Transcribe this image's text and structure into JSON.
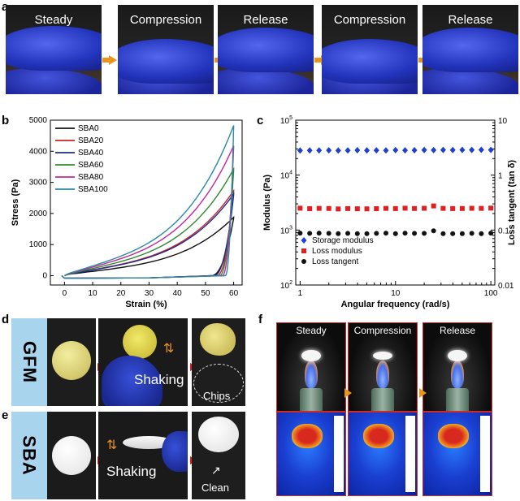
{
  "panel_a": {
    "label": "a",
    "frames": [
      {
        "label": "Steady",
        "sponge_height": 30
      },
      {
        "label": "Compression",
        "sponge_height": 14
      },
      {
        "label": "Release",
        "sponge_height": 28
      },
      {
        "label": "Compression",
        "sponge_height": 14
      },
      {
        "label": "Release",
        "sponge_height": 28
      }
    ],
    "arrow_color": "#e8951e"
  },
  "panel_b": {
    "label": "b"
  },
  "panel_c": {
    "label": "c"
  },
  "panel_d": {
    "label": "d",
    "side_label": "GFM",
    "shaking": "Shaking",
    "result": "Chips"
  },
  "panel_e": {
    "label": "e",
    "side_label": "SBA",
    "shaking": "Shaking",
    "result": "Clean"
  },
  "panel_f": {
    "label": "f",
    "frames": [
      "Steady",
      "Compression",
      "Release"
    ]
  },
  "chart_data": [
    {
      "id": "b",
      "type": "line",
      "xlabel": "Strain (%)",
      "ylabel": "Stress (Pa)",
      "xlim": [
        -5,
        63
      ],
      "ylim": [
        -300,
        5000
      ],
      "xticks": [
        0,
        10,
        20,
        30,
        40,
        50,
        60
      ],
      "yticks": [
        0,
        1000,
        2000,
        3000,
        4000,
        5000
      ],
      "legend_position": "top-left",
      "series": [
        {
          "name": "SBA0",
          "color": "#111111",
          "max_stress": 1850,
          "unload_end": 52
        },
        {
          "name": "SBA20",
          "color": "#cc2222",
          "max_stress": 2700,
          "unload_end": 54
        },
        {
          "name": "SBA40",
          "color": "#1a2a9a",
          "max_stress": 2600,
          "unload_end": 53
        },
        {
          "name": "SBA60",
          "color": "#2e8b2e",
          "max_stress": 3400,
          "unload_end": 55
        },
        {
          "name": "SBA80",
          "color": "#c2279a",
          "max_stress": 4150,
          "unload_end": 56
        },
        {
          "name": "SBA100",
          "color": "#2a8aa0",
          "max_stress": 4800,
          "unload_end": 57
        }
      ]
    },
    {
      "id": "c",
      "type": "scatter",
      "xlabel": "Angular frequency (rad/s)",
      "ylabel": "Modulus (Pa)",
      "y2label": "Loss tangent (tan δ)",
      "x_scale": "log",
      "y_scale": "log",
      "y2_scale": "log",
      "xlim": [
        0.9,
        110
      ],
      "ylim": [
        100,
        100000
      ],
      "y2lim": [
        0.01,
        10
      ],
      "xticks": [
        1,
        10,
        100
      ],
      "xtick_labels": [
        "1",
        "10",
        "100"
      ],
      "yticks": [
        100,
        1000,
        10000,
        100000
      ],
      "y2ticks": [
        0.01,
        0.1,
        1,
        10
      ],
      "y2tick_labels": [
        "0.01",
        "0.1",
        "1",
        "10"
      ],
      "legend_position": "bottom-left",
      "x": [
        1,
        1.26,
        1.58,
        2,
        2.51,
        3.16,
        3.98,
        5.01,
        6.31,
        7.94,
        10,
        12.6,
        15.8,
        20,
        25.1,
        31.6,
        39.8,
        50.1,
        63.1,
        79.4,
        100
      ],
      "series": [
        {
          "name": "Storage modulus",
          "marker": "diamond",
          "color": "#1f3fcf",
          "axis": "left",
          "values": [
            28000,
            28200,
            28100,
            28300,
            28000,
            28200,
            28400,
            28100,
            28300,
            28200,
            28500,
            28300,
            28400,
            28600,
            28500,
            28700,
            28600,
            28800,
            28700,
            28900,
            28800
          ]
        },
        {
          "name": "Loss modulus",
          "marker": "square",
          "color": "#e02020",
          "axis": "left",
          "values": [
            2500,
            2450,
            2480,
            2470,
            2420,
            2460,
            2440,
            2430,
            2450,
            2480,
            2460,
            2500,
            2470,
            2490,
            2750,
            2480,
            2460,
            2470,
            2490,
            2480,
            2510
          ]
        },
        {
          "name": "Loss tangent",
          "marker": "circle",
          "color": "#111111",
          "axis": "right",
          "values": [
            0.088,
            0.087,
            0.088,
            0.087,
            0.086,
            0.087,
            0.086,
            0.086,
            0.087,
            0.088,
            0.086,
            0.088,
            0.087,
            0.087,
            0.097,
            0.086,
            0.086,
            0.086,
            0.087,
            0.086,
            0.088
          ]
        }
      ]
    }
  ]
}
